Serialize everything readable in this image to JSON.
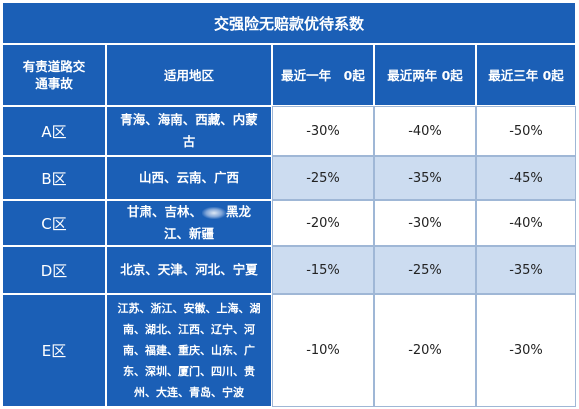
{
  "title": "交强险无赔款优待系数",
  "headers": {
    "accident": "有责道路交通事故",
    "region": "适用地区",
    "one_year": "最近一年　0起",
    "two_year": "最近两年 0起",
    "three_year": "最近三年 0起"
  },
  "rows": [
    {
      "zone": "A区",
      "regions": "青海、海南、西藏、内蒙古",
      "one": "-30%",
      "two": "-40%",
      "three": "-50%"
    },
    {
      "zone": "B区",
      "regions": "山西、云南、广西",
      "one": "-25%",
      "two": "-35%",
      "three": "-45%"
    },
    {
      "zone": "C区",
      "regions_a": "甘肃、吉林、",
      "regions_b": "黑龙江、新疆",
      "one": "-20%",
      "two": "-30%",
      "three": "-40%"
    },
    {
      "zone": "D区",
      "regions": "北京、天津、河北、宁夏",
      "one": "-15%",
      "two": "-25%",
      "three": "-35%"
    },
    {
      "zone": "E区",
      "regions": "江苏、浙江、安徽、上海、湖南、湖北、江西、辽宁、河南、福建、重庆、山东、广东、深圳、厦门、四川、贵州、大连、青岛、宁波",
      "one": "-10%",
      "two": "-20%",
      "three": "-30%"
    }
  ],
  "colors": {
    "header_blue": "#1b5fb6",
    "light_row": "#ccdcf0",
    "white_row": "#ffffff"
  }
}
